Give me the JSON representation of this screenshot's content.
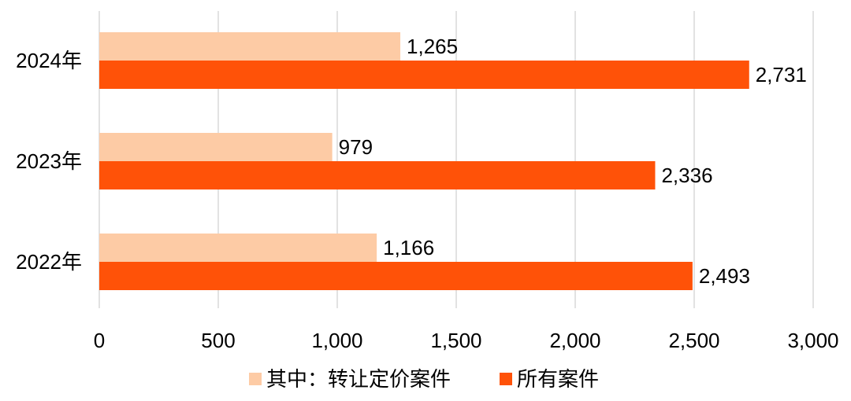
{
  "chart_data": {
    "type": "bar",
    "orientation": "horizontal",
    "categories": [
      "2024年",
      "2023年",
      "2022年"
    ],
    "series": [
      {
        "name": "其中：转让定价案件",
        "color": "#FDCBA5",
        "values": [
          1265,
          979,
          1166
        ],
        "labels": [
          "1,265",
          "979",
          "1,166"
        ]
      },
      {
        "name": "所有案件",
        "color": "#FF5208",
        "values": [
          2731,
          2336,
          2493
        ],
        "labels": [
          "2,731",
          "2,336",
          "2,493"
        ]
      }
    ],
    "xlim": [
      0,
      3000
    ],
    "xticks": [
      0,
      500,
      1000,
      1500,
      2000,
      2500,
      3000
    ],
    "xtick_labels": [
      "0",
      "500",
      "1,000",
      "1,500",
      "2,000",
      "2,500",
      "3,000"
    ],
    "grid": true,
    "legend_position": "bottom"
  }
}
